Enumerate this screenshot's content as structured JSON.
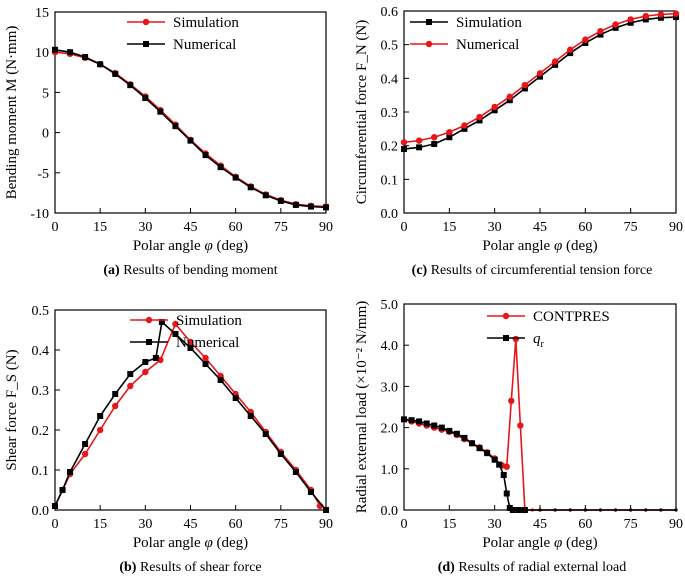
{
  "figure": {
    "colors": {
      "simulation": "#e8161a",
      "numerical": "#000000"
    }
  },
  "chart_data": [
    {
      "id": "a",
      "type": "line",
      "caption_tag": "(a)",
      "caption_text": " Results of bending moment",
      "xlabel_pre": "Polar angle ",
      "xlabel_var": "φ",
      "xlabel_post": " (deg)",
      "ylabel": "Bending moment M (N·mm)",
      "xlim": [
        0,
        90
      ],
      "ylim": [
        -10,
        15
      ],
      "xticks": [
        0,
        15,
        30,
        45,
        60,
        75,
        90
      ],
      "yticks": [
        -10,
        -5,
        0,
        5,
        10,
        15
      ],
      "legend_position": "top-right",
      "series": [
        {
          "name": "Simulation",
          "color": "#e8161a",
          "marker": "circle",
          "x": [
            0,
            5,
            10,
            15,
            20,
            25,
            30,
            35,
            40,
            45,
            50,
            55,
            60,
            65,
            70,
            75,
            80,
            85,
            90
          ],
          "y": [
            10.0,
            9.8,
            9.3,
            8.5,
            7.4,
            6.0,
            4.5,
            2.8,
            1.0,
            -0.9,
            -2.6,
            -4.1,
            -5.5,
            -6.7,
            -7.7,
            -8.4,
            -8.9,
            -9.1,
            -9.2
          ]
        },
        {
          "name": "Numerical",
          "color": "#000000",
          "marker": "square",
          "x": [
            0,
            5,
            10,
            15,
            20,
            25,
            30,
            35,
            40,
            45,
            50,
            55,
            60,
            65,
            70,
            75,
            80,
            85,
            90
          ],
          "y": [
            10.3,
            10.0,
            9.4,
            8.5,
            7.3,
            5.9,
            4.3,
            2.6,
            0.8,
            -1.0,
            -2.8,
            -4.3,
            -5.6,
            -6.8,
            -7.8,
            -8.5,
            -9.0,
            -9.2,
            -9.3
          ]
        }
      ]
    },
    {
      "id": "c",
      "type": "line",
      "caption_tag": "(c)",
      "caption_text": " Results of circumferential tension force",
      "xlabel_pre": "Polar angle ",
      "xlabel_var": "φ",
      "xlabel_post": " (deg)",
      "ylabel": "Circumferential force F_N (N)",
      "xlim": [
        0,
        90
      ],
      "ylim": [
        0.0,
        0.6
      ],
      "xticks": [
        0,
        15,
        30,
        45,
        60,
        75,
        90
      ],
      "yticks": [
        "0.0",
        "0.1",
        "0.2",
        "0.3",
        "0.4",
        "0.5",
        "0.6"
      ],
      "legend_position": "top-left",
      "series": [
        {
          "name": "Simulation",
          "color": "#000000",
          "marker": "square",
          "x": [
            0,
            5,
            10,
            15,
            20,
            25,
            30,
            35,
            40,
            45,
            50,
            55,
            60,
            65,
            70,
            75,
            80,
            85,
            90
          ],
          "y": [
            0.19,
            0.195,
            0.205,
            0.225,
            0.25,
            0.275,
            0.305,
            0.335,
            0.37,
            0.405,
            0.44,
            0.475,
            0.505,
            0.53,
            0.55,
            0.565,
            0.575,
            0.58,
            0.582
          ]
        },
        {
          "name": "Numerical",
          "color": "#e8161a",
          "marker": "circle",
          "x": [
            0,
            5,
            10,
            15,
            20,
            25,
            30,
            35,
            40,
            45,
            50,
            55,
            60,
            65,
            70,
            75,
            80,
            85,
            90
          ],
          "y": [
            0.21,
            0.215,
            0.225,
            0.24,
            0.26,
            0.285,
            0.315,
            0.345,
            0.38,
            0.415,
            0.45,
            0.485,
            0.515,
            0.54,
            0.56,
            0.575,
            0.585,
            0.59,
            0.592
          ]
        }
      ]
    },
    {
      "id": "b",
      "type": "line",
      "caption_tag": "(b)",
      "caption_text": " Results of shear force",
      "xlabel_pre": "Polar angle ",
      "xlabel_var": "φ",
      "xlabel_post": " (deg)",
      "ylabel": "Shear force F_S (N)",
      "xlim": [
        0,
        90
      ],
      "ylim": [
        0.0,
        0.5
      ],
      "xticks": [
        0,
        15,
        30,
        45,
        60,
        75,
        90
      ],
      "yticks": [
        "0.0",
        "0.1",
        "0.2",
        "0.3",
        "0.4",
        "0.5"
      ],
      "legend_position": "top-right",
      "series": [
        {
          "name": "Simulation",
          "color": "#e8161a",
          "marker": "circle",
          "x": [
            0,
            2.5,
            5,
            10,
            15,
            20,
            25,
            30,
            35,
            40,
            45,
            50,
            55,
            60,
            65,
            70,
            75,
            80,
            85,
            88
          ],
          "y": [
            0.01,
            0.05,
            0.09,
            0.14,
            0.2,
            0.26,
            0.31,
            0.345,
            0.375,
            0.465,
            0.42,
            0.38,
            0.335,
            0.29,
            0.245,
            0.195,
            0.145,
            0.1,
            0.05,
            0.01
          ]
        },
        {
          "name": "Numerical",
          "color": "#000000",
          "marker": "square",
          "x": [
            0,
            2.5,
            5,
            10,
            15,
            20,
            25,
            30,
            33.5,
            35.5,
            40,
            45,
            50,
            55,
            60,
            65,
            70,
            75,
            80,
            85,
            90
          ],
          "y": [
            0.01,
            0.05,
            0.095,
            0.165,
            0.235,
            0.29,
            0.34,
            0.37,
            0.38,
            0.47,
            0.44,
            0.405,
            0.365,
            0.325,
            0.28,
            0.235,
            0.19,
            0.14,
            0.095,
            0.045,
            0.0
          ]
        }
      ]
    },
    {
      "id": "d",
      "type": "line",
      "caption_tag": "(d)",
      "caption_text": " Results of radial external load",
      "xlabel_pre": "Polar angle ",
      "xlabel_var": "φ",
      "xlabel_post": " (deg)",
      "ylabel": "Radial external load (×10⁻² N/mm)",
      "xlim": [
        0,
        90
      ],
      "ylim": [
        0.0,
        5.0
      ],
      "xticks": [
        0,
        15,
        30,
        45,
        60,
        75,
        90
      ],
      "yticks": [
        "0.0",
        "1.0",
        "2.0",
        "3.0",
        "4.0",
        "5.0"
      ],
      "legend_position": "top-right",
      "series": [
        {
          "name": "CONTPRES",
          "color": "#e8161a",
          "marker": "circle",
          "x": [
            0,
            2.5,
            5,
            7.5,
            10,
            12.5,
            15,
            17.5,
            20,
            22.5,
            25,
            27.5,
            30,
            32.5,
            34,
            35.5,
            37,
            38.5,
            40,
            42.5,
            45,
            50,
            55,
            60,
            65,
            70,
            75,
            80,
            85,
            90
          ],
          "y": [
            2.2,
            2.15,
            2.1,
            2.05,
            2.0,
            1.95,
            1.9,
            1.82,
            1.72,
            1.62,
            1.52,
            1.4,
            1.25,
            1.08,
            1.05,
            2.65,
            4.15,
            2.05,
            0.0,
            0.0,
            0.0,
            0.0,
            0.0,
            0.0,
            0.0,
            0.0,
            0.0,
            0.0,
            0.0,
            0.0
          ]
        },
        {
          "name": "q_r",
          "color": "#000000",
          "marker": "square",
          "x": [
            0,
            2.5,
            5,
            7.5,
            10,
            12.5,
            15,
            17.5,
            20,
            22.5,
            25,
            27.5,
            30,
            31.5,
            33,
            34,
            35,
            36,
            38,
            40,
            45,
            50,
            55,
            60,
            65,
            70,
            75,
            80,
            85,
            90
          ],
          "y": [
            2.2,
            2.18,
            2.15,
            2.1,
            2.05,
            2.0,
            1.92,
            1.85,
            1.75,
            1.62,
            1.5,
            1.38,
            1.22,
            1.1,
            0.85,
            0.4,
            0.05,
            0.0,
            0.0,
            0.0,
            0.0,
            0.0,
            0.0,
            0.0,
            0.0,
            0.0,
            0.0,
            0.0,
            0.0,
            0.0
          ]
        }
      ]
    }
  ]
}
